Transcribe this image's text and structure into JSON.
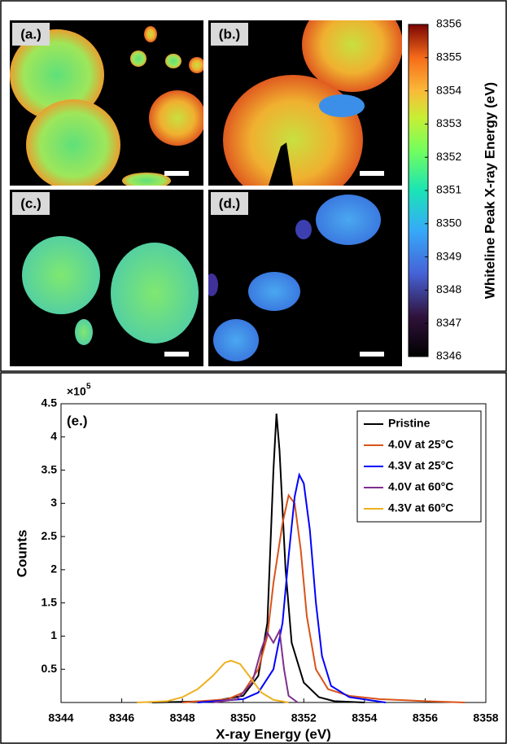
{
  "images": {
    "panels": [
      {
        "label": "(a.)"
      },
      {
        "label": "(b.)"
      },
      {
        "label": "(c.)"
      },
      {
        "label": "(d.)"
      }
    ],
    "colorbar": {
      "label": "Whiteline Peak X-ray Energy (eV)",
      "lim": [
        8346,
        8356
      ],
      "ticks": [
        8346,
        8347,
        8348,
        8349,
        8350,
        8351,
        8352,
        8353,
        8354,
        8355,
        8356
      ]
    }
  },
  "chart_data": {
    "type": "line",
    "annotation": "(e.)",
    "xlabel": "X-ray Energy (eV)",
    "ylabel": "Counts",
    "y_multiplier_base": "×10",
    "y_multiplier_exp": "5",
    "xlim": [
      8344,
      8358
    ],
    "xticks": [
      8344,
      8346,
      8348,
      8350,
      8352,
      8354,
      8356,
      8358
    ],
    "ylim": [
      0,
      4.5
    ],
    "yticks": [
      0.5,
      1,
      1.5,
      2,
      2.5,
      3,
      3.5,
      4,
      4.5
    ],
    "legend": "upper right",
    "series": [
      {
        "name": "Pristine",
        "color": "#000000",
        "x": [
          8347,
          8349,
          8350,
          8350.5,
          8350.8,
          8351.0,
          8351.1,
          8351.2,
          8351.4,
          8351.6,
          8352,
          8352.5,
          8353,
          8354
        ],
        "values": [
          0,
          0.02,
          0.1,
          0.4,
          1.2,
          3.5,
          4.35,
          3.8,
          2.0,
          0.9,
          0.3,
          0.08,
          0.02,
          0
        ]
      },
      {
        "name": "4.0V at 25°C",
        "color": "#d95319",
        "x": [
          8348,
          8349.5,
          8350,
          8350.5,
          8350.8,
          8351,
          8351.3,
          8351.5,
          8351.7,
          8351.9,
          8352.1,
          8352.4,
          8352.8,
          8353.5,
          8354.5,
          8356,
          8357.3
        ],
        "values": [
          0,
          0.05,
          0.15,
          0.5,
          1.0,
          1.8,
          2.7,
          3.12,
          3.0,
          2.3,
          1.3,
          0.5,
          0.2,
          0.1,
          0.05,
          0.02,
          0
        ]
      },
      {
        "name": "4.3V at 25°C",
        "color": "#0000ff",
        "x": [
          8348.5,
          8350,
          8350.5,
          8351,
          8351.3,
          8351.5,
          8351.7,
          8351.85,
          8352,
          8352.2,
          8352.4,
          8352.6,
          8352.9,
          8353.5,
          8354.7
        ],
        "values": [
          0,
          0.05,
          0.15,
          0.5,
          1.2,
          2.2,
          3.1,
          3.43,
          3.3,
          2.6,
          1.5,
          0.7,
          0.25,
          0.08,
          0
        ]
      },
      {
        "name": "4.0V at 60°C",
        "color": "#7e2f8e",
        "x": [
          8349,
          8349.8,
          8350.3,
          8350.6,
          8350.8,
          8351,
          8351.2,
          8351.35,
          8351.5,
          8351.8
        ],
        "values": [
          0,
          0.05,
          0.3,
          0.8,
          1.05,
          0.9,
          1.08,
          0.5,
          0.1,
          0
        ]
      },
      {
        "name": "4.3V at 60°C",
        "color": "#edb120",
        "x": [
          8346.5,
          8347.5,
          8348,
          8348.5,
          8349,
          8349.4,
          8349.6,
          8349.9,
          8350.2,
          8350.6,
          8351,
          8351.5
        ],
        "values": [
          0,
          0.02,
          0.08,
          0.2,
          0.4,
          0.6,
          0.63,
          0.58,
          0.4,
          0.15,
          0.04,
          0
        ]
      }
    ]
  }
}
